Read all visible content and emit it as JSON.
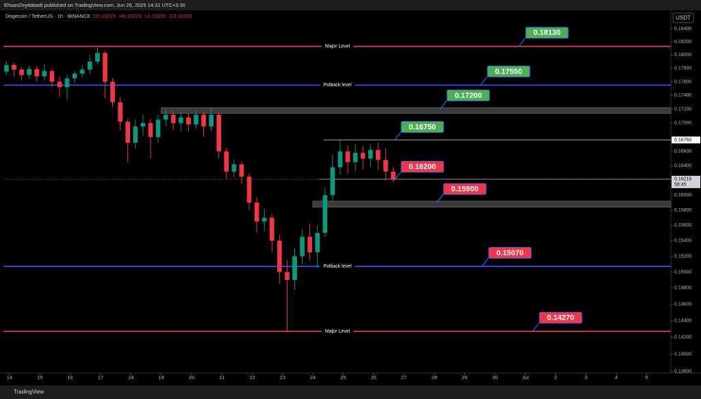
{
  "header": {
    "publisher": "EhsanZeydabadi published on TradingView.com, Jun 26, 2025 14:31 UTC+3:30",
    "symbol": "Dogecoin / TetherUS · 1h · BINANCE",
    "ohlc": [
      "O0.16223",
      "H0.16223",
      "L0.16205",
      "C0.16216"
    ],
    "currency": "USDT",
    "footer": "TradingView"
  },
  "chart_data": {
    "type": "candlestick",
    "log_scale": true,
    "up_color": "#089981",
    "down_color": "#f23645",
    "x": [
      -0.1,
      0.15,
      0.4,
      0.65,
      0.9,
      1.15,
      1.4,
      1.65,
      1.9,
      2.15,
      2.4,
      2.65,
      2.9,
      3.15,
      3.4,
      3.65,
      3.9,
      4.15,
      4.4,
      4.65,
      4.9,
      5.15,
      5.4,
      5.65,
      5.9,
      6.15,
      6.4,
      6.65,
      6.9,
      7.15,
      7.4,
      7.65,
      7.9,
      8.15,
      8.4,
      8.65,
      8.9,
      9.15,
      9.4,
      9.65,
      9.9,
      10.15,
      10.4,
      10.65,
      10.9,
      11.15,
      11.4,
      11.65,
      11.9,
      12.15,
      12.4,
      12.65
    ],
    "open": [
      0.1775,
      0.1785,
      0.1778,
      0.177,
      0.1779,
      0.1768,
      0.1776,
      0.176,
      0.1752,
      0.1765,
      0.1772,
      0.1778,
      0.179,
      0.1803,
      0.176,
      0.173,
      0.1702,
      0.1672,
      0.1695,
      0.17,
      0.168,
      0.1705,
      0.1712,
      0.17,
      0.1708,
      0.1698,
      0.1712,
      0.1695,
      0.1712,
      0.166,
      0.1632,
      0.1642,
      0.1625,
      0.159,
      0.1565,
      0.157,
      0.154,
      0.15,
      0.149,
      0.152,
      0.1545,
      0.1525,
      0.155,
      0.16,
      0.1638,
      0.166,
      0.1645,
      0.1658,
      0.165,
      0.1662,
      0.1648,
      0.1632
    ],
    "high": [
      0.179,
      0.1788,
      0.1782,
      0.1784,
      0.1783,
      0.1786,
      0.1779,
      0.1768,
      0.177,
      0.1776,
      0.1785,
      0.18,
      0.1811,
      0.1806,
      0.1765,
      0.1738,
      0.1706,
      0.1705,
      0.1712,
      0.1706,
      0.1712,
      0.172,
      0.1718,
      0.1716,
      0.1714,
      0.1718,
      0.1717,
      0.1722,
      0.1716,
      0.1665,
      0.1648,
      0.1646,
      0.163,
      0.1598,
      0.1582,
      0.1575,
      0.1548,
      0.1515,
      0.153,
      0.1555,
      0.1562,
      0.156,
      0.161,
      0.1655,
      0.1676,
      0.1668,
      0.167,
      0.1668,
      0.167,
      0.1672,
      0.1665,
      0.1638
    ],
    "low": [
      0.177,
      0.1768,
      0.1762,
      0.1765,
      0.176,
      0.1762,
      0.1752,
      0.1738,
      0.1734,
      0.1758,
      0.1766,
      0.1772,
      0.1786,
      0.1735,
      0.1722,
      0.169,
      0.1645,
      0.1664,
      0.1682,
      0.165,
      0.1672,
      0.1695,
      0.169,
      0.1688,
      0.1688,
      0.1692,
      0.168,
      0.1688,
      0.165,
      0.1622,
      0.1624,
      0.1615,
      0.158,
      0.155,
      0.1552,
      0.1525,
      0.1485,
      0.1427,
      0.1478,
      0.151,
      0.1515,
      0.1505,
      0.1545,
      0.1592,
      0.1628,
      0.163,
      0.1632,
      0.1635,
      0.1638,
      0.1634,
      0.162,
      0.1618
    ],
    "close": [
      0.1785,
      0.1778,
      0.177,
      0.1779,
      0.1768,
      0.1776,
      0.176,
      0.1752,
      0.1765,
      0.1772,
      0.1778,
      0.179,
      0.1803,
      0.176,
      0.173,
      0.1702,
      0.1672,
      0.1695,
      0.17,
      0.168,
      0.1705,
      0.1712,
      0.17,
      0.1708,
      0.1698,
      0.1712,
      0.1695,
      0.1712,
      0.166,
      0.1632,
      0.1642,
      0.1625,
      0.159,
      0.1565,
      0.157,
      0.154,
      0.15,
      0.149,
      0.152,
      0.1545,
      0.1525,
      0.155,
      0.16,
      0.1638,
      0.166,
      0.1645,
      0.1658,
      0.165,
      0.1662,
      0.1648,
      0.1632,
      0.1622
    ],
    "xlim": [
      -0.2,
      21.8
    ],
    "xticks": [
      {
        "value": 0,
        "label": "14"
      },
      {
        "value": 1,
        "label": "15"
      },
      {
        "value": 2,
        "label": "16"
      },
      {
        "value": 3,
        "label": "17"
      },
      {
        "value": 4,
        "label": "18"
      },
      {
        "value": 5,
        "label": "19"
      },
      {
        "value": 6,
        "label": "20"
      },
      {
        "value": 7,
        "label": "21"
      },
      {
        "value": 8,
        "label": "22"
      },
      {
        "value": 9,
        "label": "23"
      },
      {
        "value": 10,
        "label": "24"
      },
      {
        "value": 11,
        "label": "25"
      },
      {
        "value": 12,
        "label": "26"
      },
      {
        "value": 13,
        "label": "27"
      },
      {
        "value": 14,
        "label": "28"
      },
      {
        "value": 15,
        "label": "29"
      },
      {
        "value": 16,
        "label": "30"
      },
      {
        "value": 17,
        "label": "Jul"
      },
      {
        "value": 18,
        "label": "2"
      },
      {
        "value": 19,
        "label": "3"
      },
      {
        "value": 20,
        "label": "4"
      },
      {
        "value": 21,
        "label": "5"
      }
    ],
    "ylim": [
      0.1378,
      0.1855
    ],
    "yticks": [
      {
        "value": 0.138,
        "label": "0.13800"
      },
      {
        "value": 0.14,
        "label": "0.14000"
      },
      {
        "value": 0.142,
        "label": "0.14200"
      },
      {
        "value": 0.144,
        "label": "0.14400"
      },
      {
        "value": 0.146,
        "label": "0.14600"
      },
      {
        "value": 0.148,
        "label": "0.14800"
      },
      {
        "value": 0.15,
        "label": "0.15000"
      },
      {
        "value": 0.152,
        "label": "0.15200"
      },
      {
        "value": 0.154,
        "label": "0.15400"
      },
      {
        "value": 0.156,
        "label": "0.15600"
      },
      {
        "value": 0.158,
        "label": "0.15800"
      },
      {
        "value": 0.16,
        "label": "0.16000"
      },
      {
        "value": 0.164,
        "label": "0.16400"
      },
      {
        "value": 0.166,
        "label": "0.16600"
      },
      {
        "value": 0.17,
        "label": "0.17000"
      },
      {
        "value": 0.172,
        "label": "0.17200"
      },
      {
        "value": 0.174,
        "label": "0.17400"
      },
      {
        "value": 0.176,
        "label": "0.17600"
      },
      {
        "value": 0.178,
        "label": "0.17800"
      },
      {
        "value": 0.18,
        "label": "0.18000"
      },
      {
        "value": 0.182,
        "label": "0.18200"
      },
      {
        "value": 0.184,
        "label": "0.18400"
      }
    ],
    "levels": [
      {
        "name": "Major Level",
        "value": 0.1813,
        "color": "#f23645"
      },
      {
        "name": "Polback level",
        "value": 0.1755,
        "color": "#2962ff"
      },
      {
        "name": "Polback level",
        "value": 0.1507,
        "color": "#2962ff"
      },
      {
        "name": "Major Level",
        "value": 0.1427,
        "color": "#f23645"
      }
    ],
    "zones": [
      {
        "from": 0.1722,
        "to": 0.1714,
        "start": 5.0
      },
      {
        "from": 0.1592,
        "to": 0.1584,
        "start": 10.0
      }
    ],
    "range_lines": [
      {
        "value": 0.1676,
        "start": 10.35,
        "color": "#d1d4dc"
      },
      {
        "value": 0.16216,
        "start": 10.2,
        "color": "#d1d4dc"
      }
    ],
    "callouts": [
      {
        "value": 0.1813,
        "label": "0.18130",
        "color": "#4caf50"
      },
      {
        "value": 0.1755,
        "label": "0.17550",
        "color": "#4caf50"
      },
      {
        "value": 0.172,
        "label": "0.17200",
        "color": "#4caf50"
      },
      {
        "value": 0.1675,
        "label": "0.16750",
        "color": "#4caf50"
      },
      {
        "value": 0.162,
        "label": "0.16200",
        "color": "#f23645"
      },
      {
        "value": 0.159,
        "label": "0.15900",
        "color": "#f23645"
      },
      {
        "value": 0.1507,
        "label": "0.15070",
        "color": "#f23645"
      },
      {
        "value": 0.1427,
        "label": "0.14270",
        "color": "#f23645"
      }
    ],
    "price_tags": [
      {
        "value": 0.1676,
        "label": "0.16760",
        "color": "#ffffff"
      },
      {
        "value": 0.16216,
        "label": "0.16216",
        "color": "#d1d4dc",
        "countdown": "58:45"
      }
    ]
  }
}
